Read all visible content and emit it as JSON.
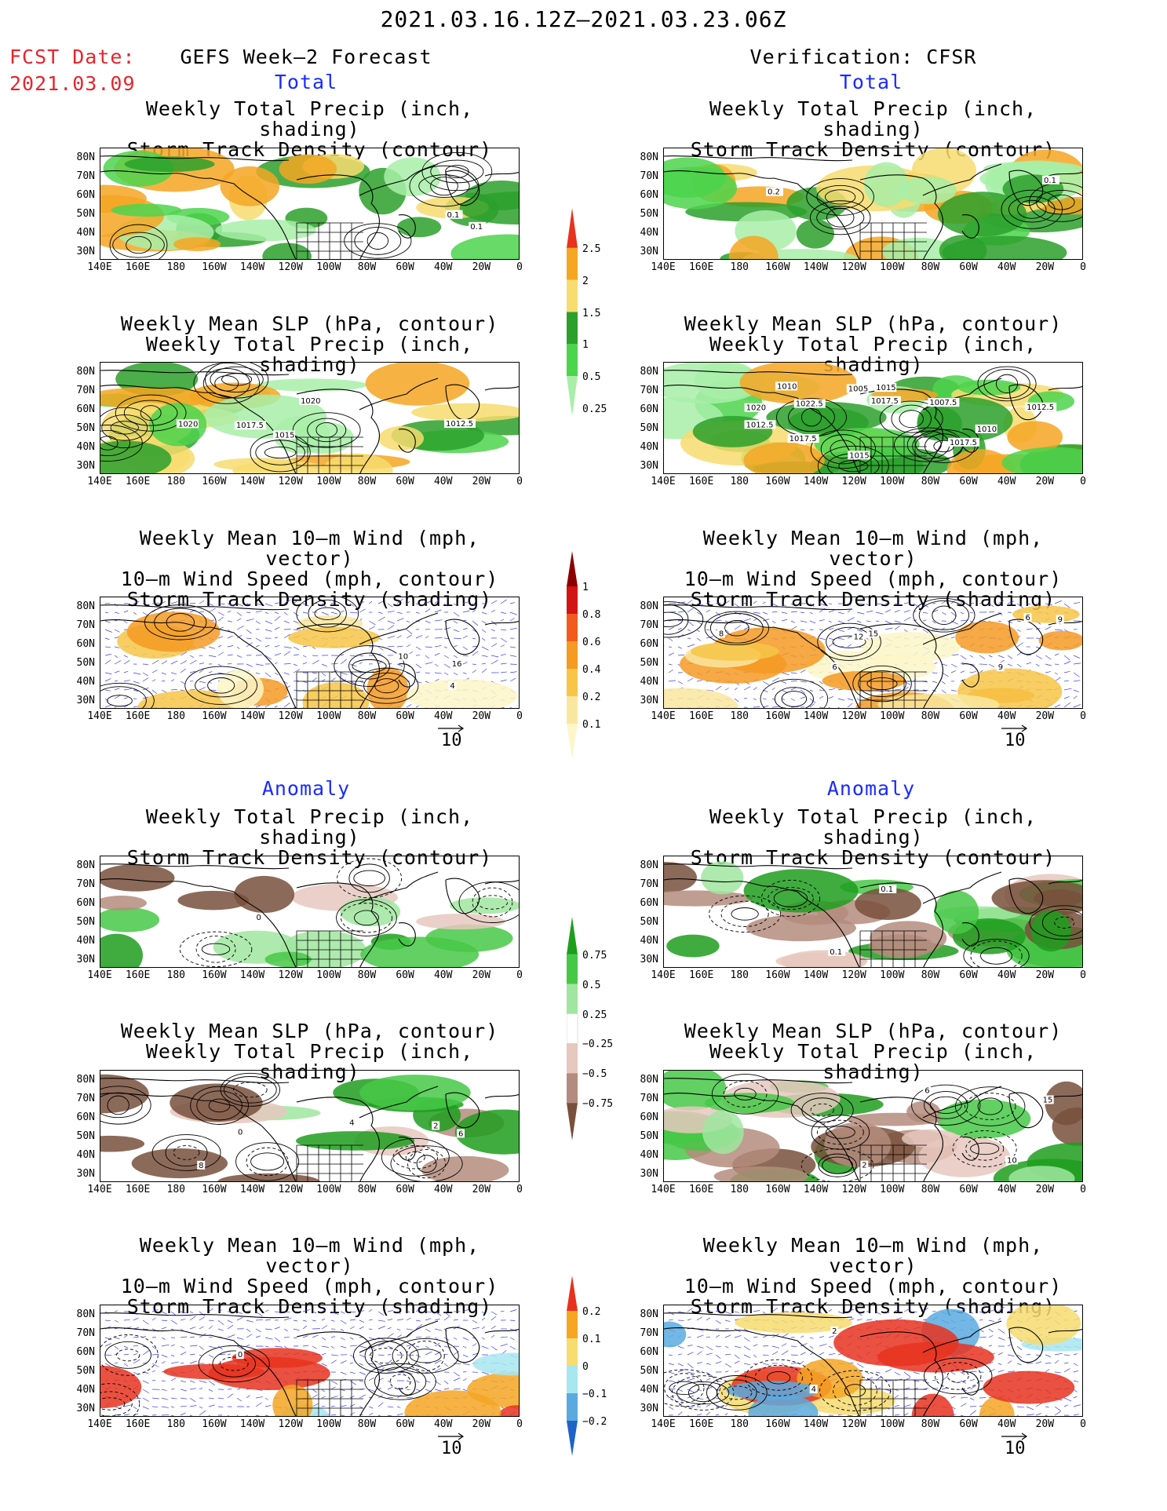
{
  "header": {
    "date_range": "2021.03.16.12Z–2021.03.23.06Z",
    "fcst_label": "FCST Date:",
    "fcst_date": "2021.03.09",
    "left_title": "GEFS Week–2 Forecast",
    "right_title": "Verification: CFSR",
    "total_label": "Total",
    "anomaly_label": "Anomaly"
  },
  "panel_titles": {
    "precip_track": [
      "Weekly Total Precip (inch, shading)",
      "Storm Track Density (contour)"
    ],
    "slp_precip": [
      "Weekly Mean SLP (hPa, contour)",
      "Weekly Total Precip (inch, shading)"
    ],
    "wind": [
      "Weekly Mean 10–m Wind (mph, vector)",
      "10–m Wind Speed (mph, contour)",
      "Storm Track Density (shading)"
    ]
  },
  "axes": {
    "lat_labels": [
      "80N",
      "70N",
      "60N",
      "50N",
      "40N",
      "30N"
    ],
    "lon_labels": [
      "140E",
      "160E",
      "180",
      "160W",
      "140W",
      "120W",
      "100W",
      "80W",
      "60W",
      "40W",
      "20W",
      "0"
    ]
  },
  "vector_ref": "10",
  "colorbars": {
    "total_precip": {
      "labels": [
        "2.5",
        "2",
        "1.5",
        "1",
        "0.5",
        "0.25"
      ],
      "colors": [
        "#e8321e",
        "#f5a623",
        "#f7dc6f",
        "#2ca02c",
        "#4cd44c",
        "#a8eea8"
      ]
    },
    "total_track": {
      "labels": [
        "1",
        "0.8",
        "0.6",
        "0.4",
        "0.2",
        "0.1"
      ],
      "colors": [
        "#8b0000",
        "#d21414",
        "#f25a1e",
        "#f59a23",
        "#f7c548",
        "#f9e79f",
        "#fdf6c8"
      ]
    },
    "anom_precip": {
      "labels": [
        "0.75",
        "0.5",
        "0.25",
        "−0.25",
        "−0.5",
        "−0.75"
      ],
      "colors": [
        "#1e9e1e",
        "#46c846",
        "#a0e6a0",
        "#ffffff",
        "#e6c8be",
        "#b48c7d",
        "#78503c"
      ]
    },
    "anom_track": {
      "labels": [
        "0.2",
        "0.1",
        "0",
        "−0.1",
        "−0.2"
      ],
      "colors": [
        "#e8321e",
        "#f5a623",
        "#f7dc6f",
        "#a8e6f0",
        "#5aaadf",
        "#1e64c8"
      ]
    }
  },
  "contour_labels": {
    "fc_total_precip": [
      "0.1",
      "0.1"
    ],
    "ob_total_precip": [
      "0.1",
      "0.2"
    ],
    "fc_total_slp": [
      "1015",
      "1017.5",
      "1012.5",
      "1020",
      "1020"
    ],
    "ob_total_slp": [
      "1005",
      "1007.5",
      "1015",
      "1012.5",
      "1017.5",
      "1010",
      "1012.5",
      "1010",
      "1017.5",
      "1015",
      "1017.5",
      "1020",
      "1022.5"
    ],
    "fc_total_wind": [
      "16",
      "10",
      "4"
    ],
    "ob_total_wind": [
      "6",
      "8",
      "12",
      "15",
      "9",
      "9",
      "6"
    ],
    "fc_anom_precip": [
      "0"
    ],
    "ob_anom_precip": [
      "0.1",
      "0.1"
    ],
    "fc_anom_slp": [
      "2",
      "4",
      "6",
      "8",
      "0"
    ],
    "ob_anom_slp": [
      "10",
      "15",
      "2",
      "6"
    ],
    "fc_anom_wind": [
      "0"
    ],
    "ob_anom_wind": [
      "4",
      "2"
    ]
  }
}
